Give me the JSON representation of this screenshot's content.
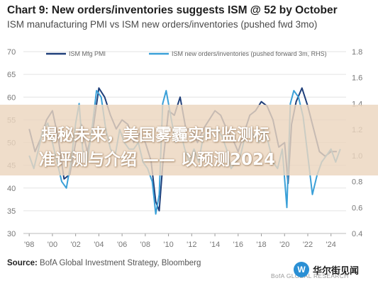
{
  "header": {
    "title": "Chart 9: New orders/inventories suggests ISM @ 52 by October",
    "subtitle": "ISM manufacturing PMI vs ISM new orders/inventories (pushed fwd 3mo)"
  },
  "overlay": {
    "line1": "揭秘未来，美国雾霾实时监测标",
    "line2": "准评测与介绍 —— 以预测2024"
  },
  "footer": {
    "source_label": "Source:",
    "source_text": "BofA Global Investment Strategy, Bloomberg",
    "bofa_mark": "BofA GLOBAL RESEARCH",
    "watermark_text": "华尔街见闻"
  },
  "colors": {
    "pmi": "#1f3f7a",
    "new_orders": "#3aa0d8",
    "overlay": "#ecd6be"
  },
  "chart_data": {
    "type": "line",
    "title": "Chart 9: New orders/inventories suggests ISM @ 52 by October",
    "subtitle": "ISM manufacturing PMI vs ISM new orders/inventories (pushed fwd 3mo)",
    "x_tick_labels": [
      "'98",
      "'00",
      "'02",
      "'04",
      "'06",
      "'08",
      "'10",
      "'12",
      "'14",
      "'16",
      "'18",
      "'20",
      "'22",
      "'24"
    ],
    "x_tick_years": [
      1998,
      2000,
      2002,
      2004,
      2006,
      2008,
      2010,
      2012,
      2014,
      2016,
      2018,
      2020,
      2022,
      2024
    ],
    "xlim": [
      1997.5,
      2025.3
    ],
    "left_axis": {
      "ylim": [
        30,
        70
      ],
      "ticks": [
        30,
        35,
        40,
        45,
        50,
        55,
        60,
        65,
        70
      ]
    },
    "right_axis": {
      "ylim": [
        0.4,
        1.8
      ],
      "ticks": [
        "0.4",
        "0.6",
        "0.8",
        "1.0",
        "1.2",
        "1.4",
        "1.6",
        "1.8"
      ],
      "tick_values": [
        0.4,
        0.6,
        0.8,
        1.0,
        1.2,
        1.4,
        1.6,
        1.8
      ]
    },
    "legend": {
      "placement": "top"
    },
    "series": [
      {
        "name": "ISM Mfg PMI",
        "axis": "left",
        "color": "#1f3f7a",
        "x": [
          1998.0,
          1998.5,
          1999.0,
          1999.5,
          2000.0,
          2000.5,
          2001.0,
          2001.5,
          2002.0,
          2002.5,
          2003.0,
          2003.5,
          2004.0,
          2004.5,
          2005.0,
          2005.5,
          2006.0,
          2006.5,
          2007.0,
          2007.5,
          2008.0,
          2008.5,
          2008.9,
          2009.2,
          2009.5,
          2010.0,
          2010.5,
          2011.0,
          2011.5,
          2012.0,
          2012.5,
          2013.0,
          2013.5,
          2014.0,
          2014.5,
          2015.0,
          2015.5,
          2016.0,
          2016.5,
          2017.0,
          2017.5,
          2018.0,
          2018.5,
          2019.0,
          2019.5,
          2020.0,
          2020.3,
          2020.6,
          2021.0,
          2021.5,
          2022.0,
          2022.5,
          2023.0,
          2023.5,
          2024.0,
          2024.5
        ],
        "y": [
          53,
          48,
          51,
          55,
          57,
          51,
          42,
          43,
          50,
          54,
          48,
          53,
          62,
          60,
          56,
          53,
          55,
          54,
          50,
          52,
          50,
          46,
          37,
          35,
          45,
          57,
          56,
          60,
          53,
          53,
          50,
          53,
          55,
          57,
          56,
          53,
          51,
          48,
          52,
          56,
          57,
          59,
          58,
          55,
          49,
          50,
          41,
          54,
          59,
          62,
          58,
          53,
          48,
          47,
          48,
          48
        ]
      },
      {
        "name": "ISM new orders/inventories (pushed forward 3m, RHS)",
        "axis": "right",
        "color": "#3aa0d8",
        "x": [
          1998.0,
          1998.4,
          1998.8,
          1999.2,
          1999.6,
          2000.0,
          2000.4,
          2000.8,
          2001.2,
          2001.6,
          2002.0,
          2002.3,
          2002.6,
          2003.0,
          2003.4,
          2003.8,
          2004.2,
          2004.6,
          2005.0,
          2005.4,
          2005.8,
          2006.2,
          2006.6,
          2007.0,
          2007.4,
          2007.8,
          2008.2,
          2008.6,
          2008.9,
          2009.2,
          2009.5,
          2009.8,
          2010.2,
          2010.6,
          2011.0,
          2011.4,
          2011.8,
          2012.2,
          2012.6,
          2013.0,
          2013.4,
          2013.8,
          2014.2,
          2014.6,
          2015.0,
          2015.4,
          2015.8,
          2016.2,
          2016.6,
          2017.0,
          2017.4,
          2017.8,
          2018.2,
          2018.6,
          2019.0,
          2019.4,
          2019.8,
          2020.2,
          2020.5,
          2020.8,
          2021.2,
          2021.6,
          2022.0,
          2022.4,
          2022.8,
          2023.2,
          2023.6,
          2024.0,
          2024.4,
          2024.8
        ],
        "y": [
          1.0,
          0.9,
          1.05,
          1.2,
          1.25,
          1.1,
          0.95,
          0.8,
          0.75,
          0.95,
          1.25,
          1.4,
          1.05,
          0.95,
          1.2,
          1.5,
          1.45,
          1.2,
          1.05,
          1.0,
          1.2,
          1.1,
          1.05,
          1.05,
          1.1,
          0.95,
          0.9,
          0.8,
          0.55,
          0.7,
          1.4,
          1.5,
          1.3,
          1.1,
          1.2,
          1.05,
          0.95,
          1.05,
          0.95,
          1.15,
          1.2,
          1.2,
          1.2,
          1.15,
          1.05,
          0.9,
          0.95,
          1.0,
          1.15,
          1.2,
          1.15,
          1.1,
          1.2,
          1.1,
          0.95,
          0.9,
          1.05,
          0.6,
          1.4,
          1.5,
          1.45,
          1.3,
          1.0,
          0.7,
          0.85,
          0.95,
          1.0,
          1.05,
          0.95,
          1.05
        ]
      }
    ]
  }
}
